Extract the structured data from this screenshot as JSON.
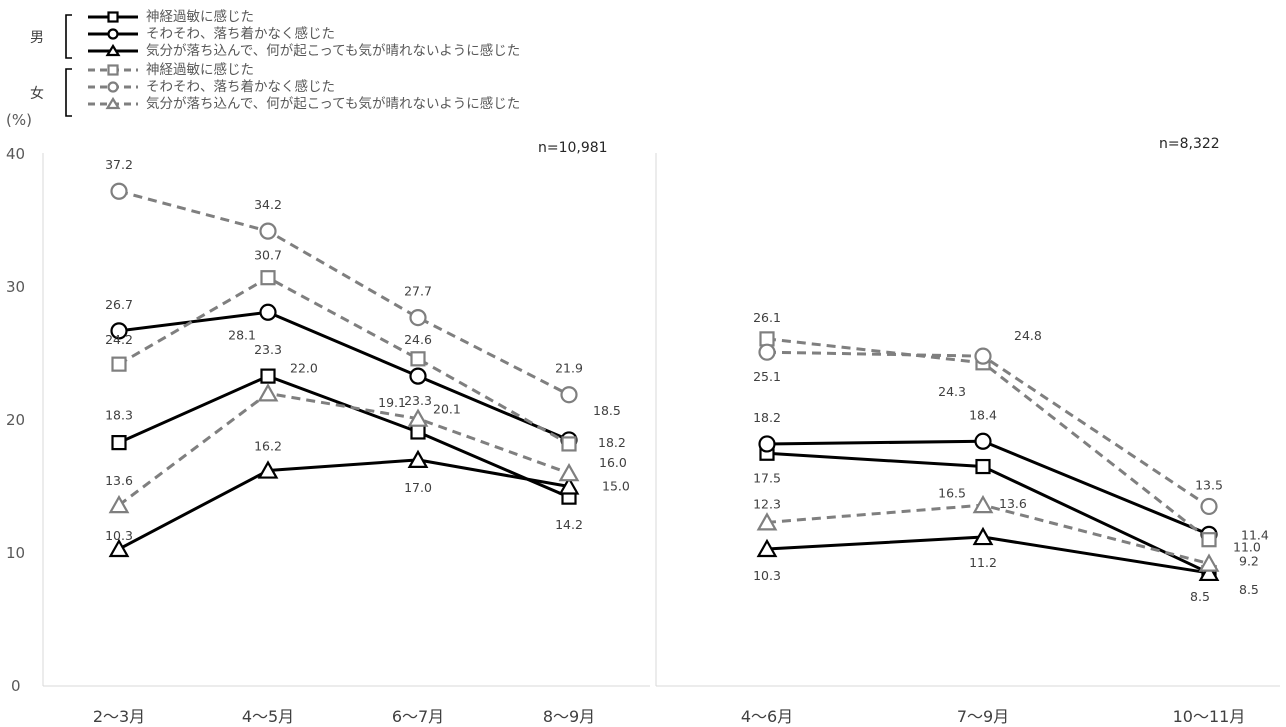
{
  "y_axis_unit": "(%)",
  "legend": {
    "groups": [
      {
        "label": "男",
        "entries": [
          {
            "text": "神経過敏に感じた",
            "marker": "square",
            "style": "solid"
          },
          {
            "text": "そわそわ、落ち着かなく感じた",
            "marker": "circle",
            "style": "solid"
          },
          {
            "text": "気分が落ち込んで、何が起こっても気が晴れないように感じた",
            "marker": "triangle",
            "style": "solid"
          }
        ]
      },
      {
        "label": "女",
        "entries": [
          {
            "text": "神経過敏に感じた",
            "marker": "square",
            "style": "dashed"
          },
          {
            "text": "そわそわ、落ち着かなく感じた",
            "marker": "circle",
            "style": "dashed"
          },
          {
            "text": "気分が落ち込んで、何が起こっても気が晴れないように感じた",
            "marker": "triangle",
            "style": "dashed"
          }
        ]
      }
    ]
  },
  "colors": {
    "male": "#000000",
    "female": "#7f7f7f",
    "axis": "#d9d9d9"
  },
  "chart_data": [
    {
      "type": "line",
      "note": "n=10,981",
      "categories": [
        "2～3月",
        "4～5月",
        "6～7月",
        "8～9月"
      ],
      "ylim": [
        0,
        40
      ],
      "yticks": [
        "0",
        "10",
        "20",
        "30",
        "40"
      ],
      "grid": false,
      "series": [
        {
          "name": "男 神経過敏に感じた",
          "values": [
            18.3,
            23.3,
            19.1,
            14.2
          ]
        },
        {
          "name": "男 そわそわ、落ち着かなく感じた",
          "values": [
            26.7,
            28.1,
            23.3,
            18.5
          ]
        },
        {
          "name": "男 気分が落ち込んで、何が起こっても気が晴れないように感じた",
          "values": [
            10.3,
            16.2,
            17.0,
            15.0
          ]
        },
        {
          "name": "女 神経過敏に感じた",
          "values": [
            24.2,
            30.7,
            24.6,
            18.2
          ]
        },
        {
          "name": "女 そわそわ、落ち着かなく感じた",
          "values": [
            37.2,
            34.2,
            27.7,
            21.9
          ]
        },
        {
          "name": "女 気分が落ち込んで、何が起こっても気が晴れないように感じた",
          "values": [
            13.6,
            22.0,
            20.1,
            16.0
          ]
        }
      ]
    },
    {
      "type": "line",
      "note": "n=8,322",
      "categories": [
        "4～6月",
        "7～9月",
        "10～11月"
      ],
      "ylim": [
        0,
        40
      ],
      "grid": false,
      "series": [
        {
          "name": "男 神経過敏に感じた",
          "values": [
            17.5,
            16.5,
            8.5
          ]
        },
        {
          "name": "男 そわそわ、落ち着かなく感じた",
          "values": [
            18.2,
            18.4,
            11.4
          ]
        },
        {
          "name": "男 気分が落ち込んで、何が起こっても気が晴れないように感じた",
          "values": [
            10.3,
            11.2,
            8.5
          ]
        },
        {
          "name": "女 神経過敏に感じた",
          "values": [
            26.1,
            24.3,
            11.0
          ]
        },
        {
          "name": "女 そわそわ、落ち着かなく感じた",
          "values": [
            25.1,
            24.8,
            13.5
          ]
        },
        {
          "name": "女 気分が落ち込んで、何が起こっても気が晴れないように感じた",
          "values": [
            12.3,
            13.6,
            9.2
          ]
        }
      ]
    }
  ]
}
